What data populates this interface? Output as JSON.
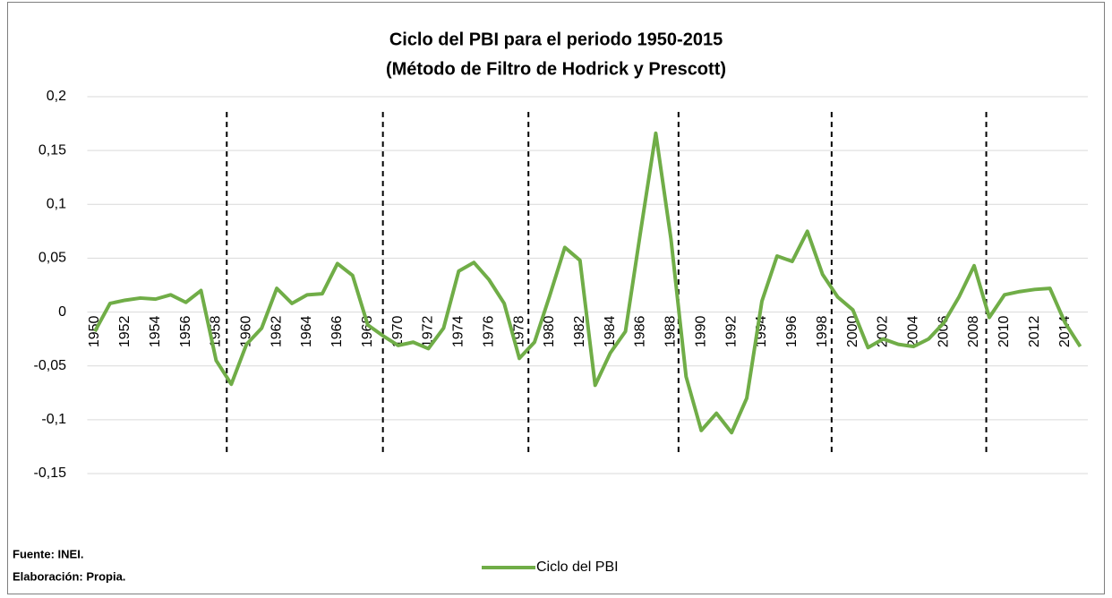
{
  "chart_data": {
    "type": "line",
    "title": [
      "Ciclo del PBI para el periodo 1950-2015",
      "(Método de Filtro de Hodrick y Prescott)"
    ],
    "notes": [
      "Fuente: INEI.",
      "Elaboración: Propia."
    ],
    "x": [
      1950,
      1951,
      1952,
      1953,
      1954,
      1955,
      1956,
      1957,
      1958,
      1959,
      1960,
      1961,
      1962,
      1963,
      1964,
      1965,
      1966,
      1967,
      1968,
      1969,
      1970,
      1971,
      1972,
      1973,
      1974,
      1975,
      1976,
      1977,
      1978,
      1979,
      1980,
      1981,
      1982,
      1983,
      1984,
      1985,
      1986,
      1987,
      1988,
      1989,
      1990,
      1991,
      1992,
      1993,
      1994,
      1995,
      1996,
      1997,
      1998,
      1999,
      2000,
      2001,
      2002,
      2003,
      2004,
      2005,
      2006,
      2007,
      2008,
      2009,
      2010,
      2011,
      2012,
      2013,
      2014,
      2015
    ],
    "series": [
      {
        "name": "Ciclo del PBI",
        "color": "#70ad47",
        "values": [
          -0.018,
          0.008,
          0.011,
          0.013,
          0.012,
          0.016,
          0.009,
          0.02,
          -0.045,
          -0.067,
          -0.03,
          -0.015,
          0.022,
          0.008,
          0.016,
          0.017,
          0.045,
          0.034,
          -0.012,
          -0.022,
          -0.031,
          -0.028,
          -0.034,
          -0.015,
          0.038,
          0.046,
          0.03,
          0.008,
          -0.043,
          -0.028,
          0.015,
          0.06,
          0.048,
          -0.068,
          -0.038,
          -0.018,
          0.075,
          0.166,
          0.068,
          -0.06,
          -0.11,
          -0.094,
          -0.112,
          -0.08,
          0.01,
          0.052,
          0.047,
          0.075,
          0.035,
          0.014,
          0.002,
          -0.033,
          -0.025,
          -0.03,
          -0.032,
          -0.025,
          -0.01,
          0.014,
          0.043,
          -0.005,
          0.016,
          0.019,
          0.021,
          0.022,
          -0.01,
          -0.032
        ]
      }
    ],
    "xlim": [
      1949.5,
      2015.5
    ],
    "xticks": [
      1950,
      1952,
      1954,
      1956,
      1958,
      1960,
      1962,
      1964,
      1966,
      1968,
      1970,
      1972,
      1974,
      1976,
      1978,
      1980,
      1982,
      1984,
      1986,
      1988,
      1990,
      1992,
      1994,
      1996,
      1998,
      2000,
      2002,
      2004,
      2006,
      2008,
      2010,
      2012,
      2014
    ],
    "ylim": [
      -0.15,
      0.2
    ],
    "yticks": [
      {
        "value": -0.15,
        "label": "-0,15"
      },
      {
        "value": -0.1,
        "label": "-0,1"
      },
      {
        "value": -0.05,
        "label": "-0,05"
      },
      0,
      {
        "value": 0.05,
        "label": "0,05"
      },
      {
        "value": 0.1,
        "label": "0,1"
      },
      {
        "value": 0.15,
        "label": "0,15"
      },
      {
        "value": 0.2,
        "label": "0,2"
      }
    ],
    "vlines": [
      1958.7,
      1969,
      1978.6,
      1988.5,
      1998.6,
      2008.8
    ],
    "grid": true,
    "legend": "bottom"
  }
}
